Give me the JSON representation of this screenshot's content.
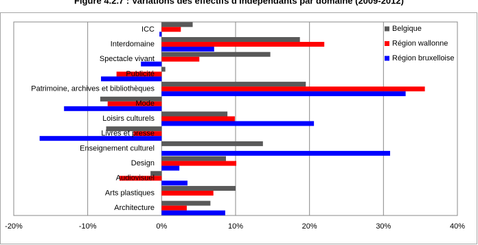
{
  "chart_data": {
    "type": "hbar",
    "title": "Figure 4.2.7 : Variations des effectifs d'indépendants par domaine (2009-2012)",
    "categories": [
      "ICC",
      "Interdomaine",
      "Spectacle vivant",
      "Publicité",
      "Patrimoine, archives et bibliothèques",
      "Mode",
      "Loisirs culturels",
      "Livres et presse",
      "Enseignement culturel",
      "Design",
      "Audiovisuel",
      "Arts plastiques",
      "Architecture"
    ],
    "series": [
      {
        "name": "Belgique",
        "color": "#595959",
        "values": [
          4.2,
          18.7,
          14.7,
          0.5,
          19.5,
          -8.3,
          8.9,
          -7.5,
          13.7,
          8.7,
          -1.5,
          10.0,
          6.6
        ]
      },
      {
        "name": "Région wallonne",
        "color": "#ff0000",
        "values": [
          2.6,
          22.0,
          5.1,
          -6.1,
          35.6,
          -7.3,
          9.9,
          -3.8,
          0,
          10.1,
          -5.7,
          7.0,
          3.4
        ]
      },
      {
        "name": "Région bruxelloise",
        "color": "#0000ff",
        "values": [
          -0.3,
          7.1,
          -2.8,
          -8.2,
          33.0,
          -13.2,
          20.6,
          -16.5,
          30.9,
          2.4,
          3.5,
          0,
          8.6
        ]
      }
    ],
    "xlim": [
      -20,
      40
    ],
    "xticks": [
      {
        "value": -20,
        "label": "-20%"
      },
      {
        "value": -10,
        "label": "-10%"
      },
      {
        "value": 0,
        "label": "0%"
      },
      {
        "value": 10,
        "label": "10%"
      },
      {
        "value": 20,
        "label": "20%"
      },
      {
        "value": 30,
        "label": "30%"
      },
      {
        "value": 40,
        "label": "40%"
      }
    ],
    "grid": true,
    "legend": "top-right"
  }
}
